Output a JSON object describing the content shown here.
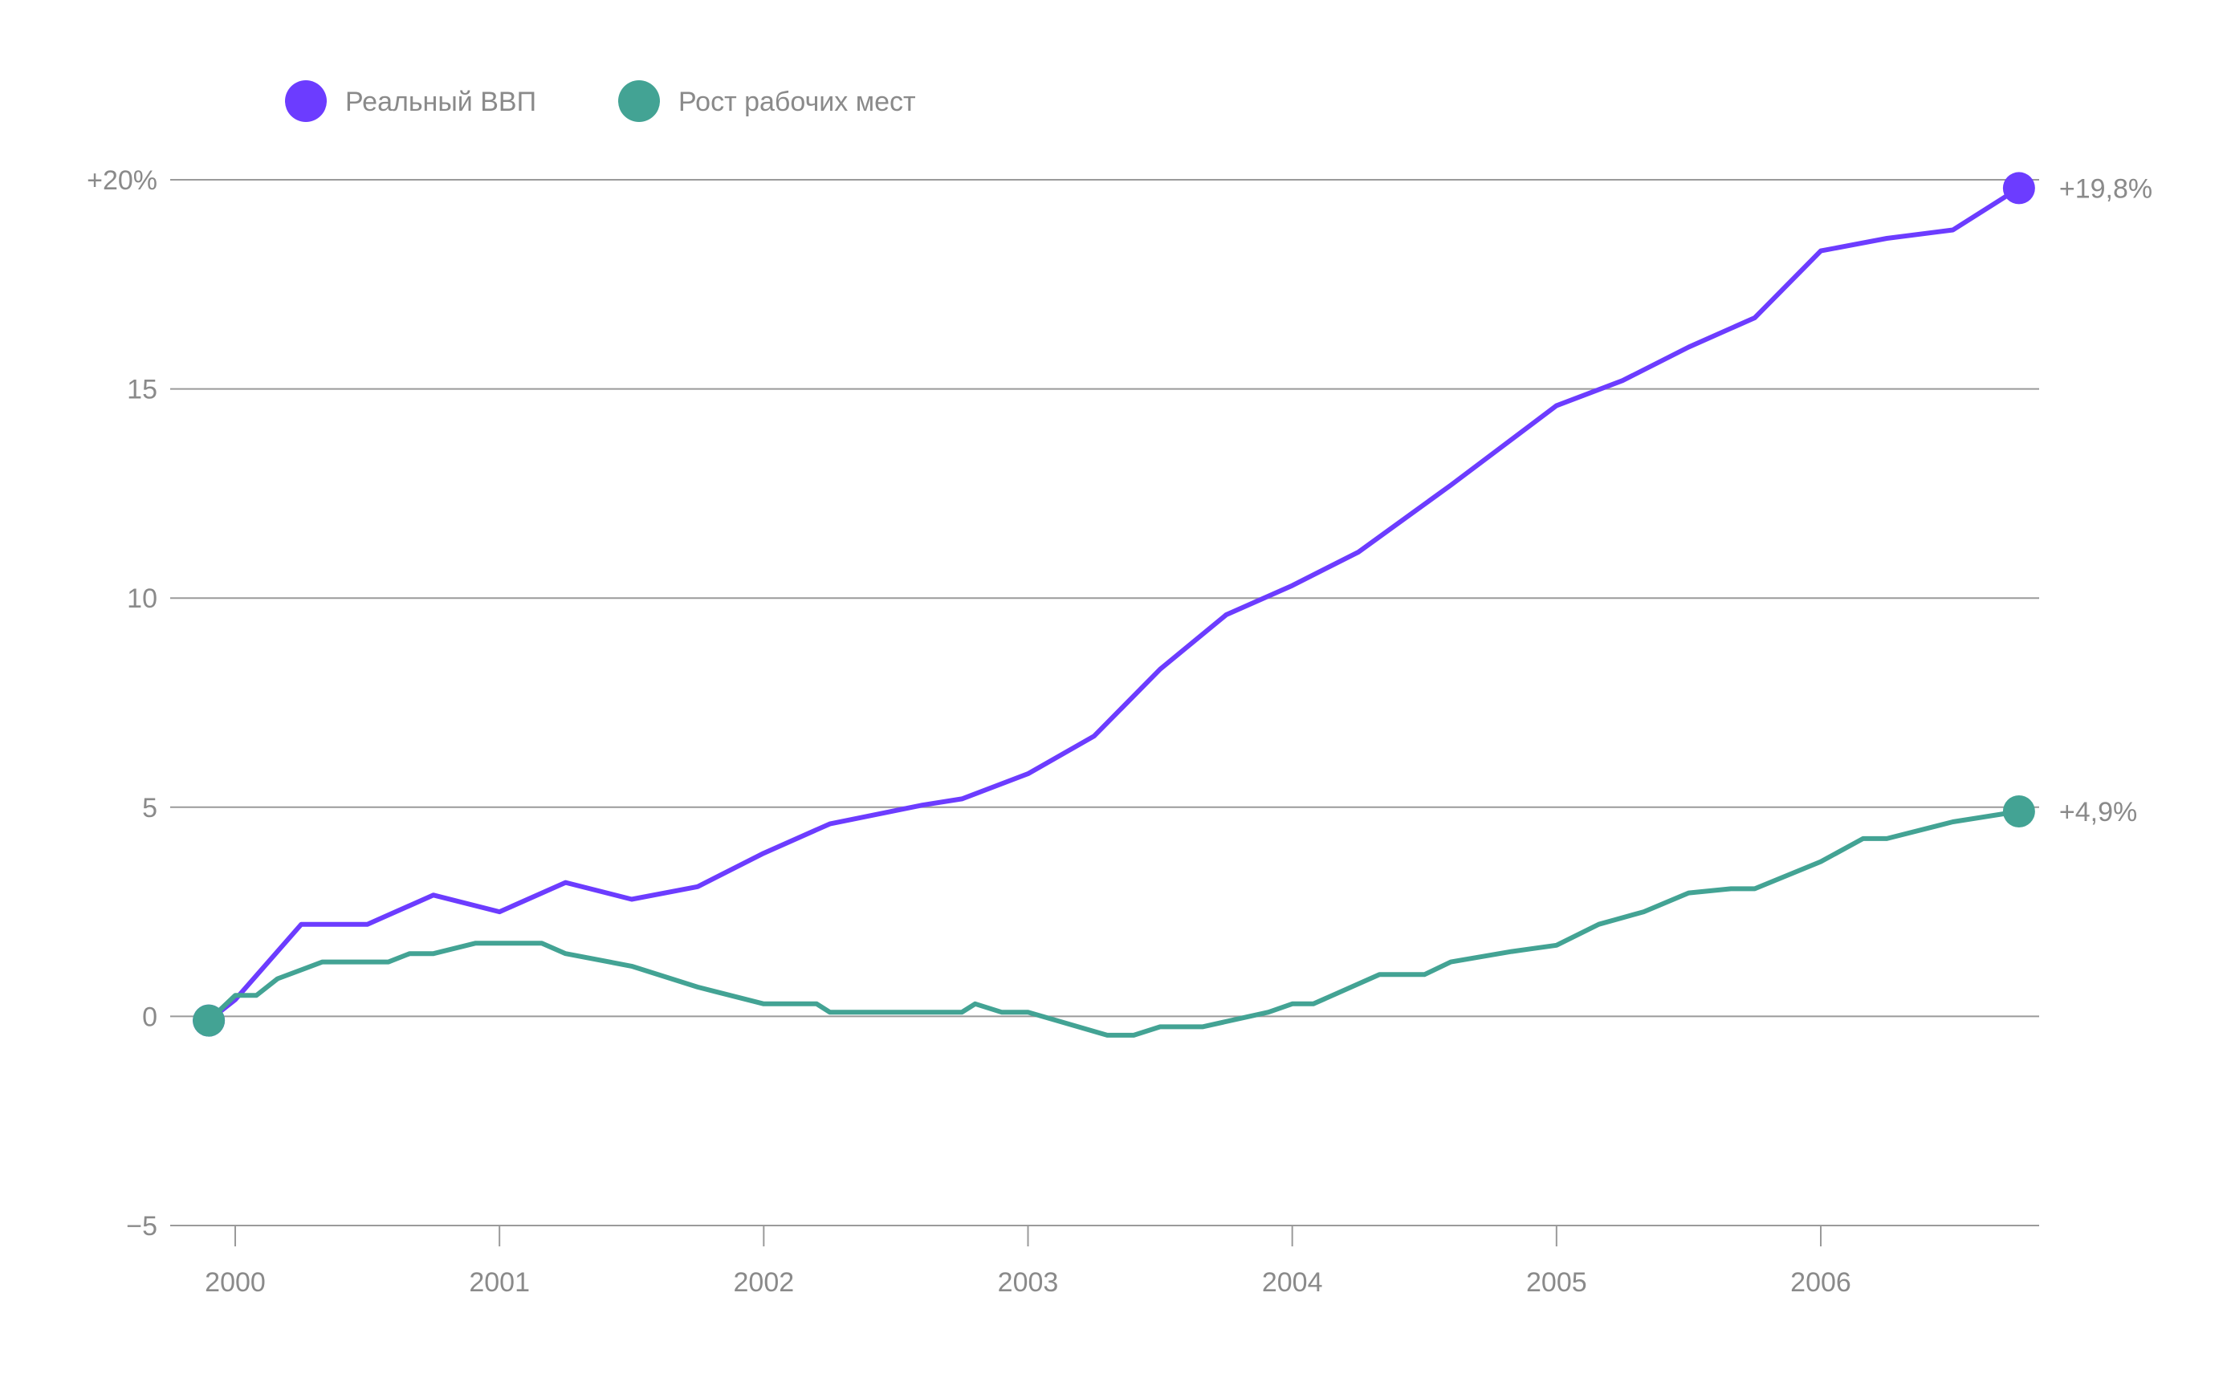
{
  "chart_data": {
    "type": "line",
    "title": "",
    "xlabel": "",
    "ylabel": "",
    "xlim": [
      1999.9,
      2006.95
    ],
    "ylim": [
      -5,
      20
    ],
    "y_ticks": [
      {
        "value": 20,
        "label": "+20%"
      },
      {
        "value": 15,
        "label": "15"
      },
      {
        "value": 10,
        "label": "10"
      },
      {
        "value": 5,
        "label": "5"
      },
      {
        "value": 0,
        "label": "0"
      },
      {
        "value": -5,
        "label": "−5"
      }
    ],
    "x_ticks": [
      {
        "value": 2000,
        "label": "2000"
      },
      {
        "value": 2001,
        "label": "2001"
      },
      {
        "value": 2002,
        "label": "2002"
      },
      {
        "value": 2003,
        "label": "2003"
      },
      {
        "value": 2004,
        "label": "2004"
      },
      {
        "value": 2005,
        "label": "2005"
      },
      {
        "value": 2006,
        "label": "2006"
      }
    ],
    "grid": true,
    "legend_position": "top-left",
    "series": [
      {
        "name": "Реальный ВВП",
        "color": "#6c3cff",
        "end_label": "+19,8%",
        "points": [
          [
            1999.9,
            -0.1
          ],
          [
            2000.0,
            0.4
          ],
          [
            2000.25,
            2.2
          ],
          [
            2000.5,
            2.2
          ],
          [
            2000.75,
            2.9
          ],
          [
            2001.0,
            2.5
          ],
          [
            2001.25,
            3.2
          ],
          [
            2001.5,
            2.8
          ],
          [
            2001.75,
            3.1
          ],
          [
            2002.0,
            3.9
          ],
          [
            2002.25,
            4.6
          ],
          [
            2002.6,
            5.05
          ],
          [
            2002.75,
            5.2
          ],
          [
            2003.0,
            5.8
          ],
          [
            2003.25,
            6.7
          ],
          [
            2003.5,
            8.3
          ],
          [
            2003.75,
            9.6
          ],
          [
            2004.0,
            10.3
          ],
          [
            2004.25,
            11.1
          ],
          [
            2004.6,
            12.7
          ],
          [
            2005.0,
            14.6
          ],
          [
            2005.25,
            15.2
          ],
          [
            2005.5,
            16.0
          ],
          [
            2005.75,
            16.7
          ],
          [
            2006.0,
            18.3
          ],
          [
            2006.25,
            18.6
          ],
          [
            2006.5,
            18.8
          ],
          [
            2006.75,
            19.8
          ]
        ]
      },
      {
        "name": "Рост рабочих мест",
        "color": "#43a394",
        "end_label": "+4,9%",
        "points": [
          [
            1999.9,
            -0.1
          ],
          [
            2000.0,
            0.5
          ],
          [
            2000.08,
            0.5
          ],
          [
            2000.16,
            0.9
          ],
          [
            2000.33,
            1.3
          ],
          [
            2000.58,
            1.3
          ],
          [
            2000.66,
            1.5
          ],
          [
            2000.75,
            1.5
          ],
          [
            2000.91,
            1.75
          ],
          [
            2001.16,
            1.75
          ],
          [
            2001.25,
            1.5
          ],
          [
            2001.5,
            1.2
          ],
          [
            2001.75,
            0.7
          ],
          [
            2002.0,
            0.3
          ],
          [
            2002.2,
            0.3
          ],
          [
            2002.25,
            0.1
          ],
          [
            2002.75,
            0.1
          ],
          [
            2002.8,
            0.3
          ],
          [
            2002.9,
            0.1
          ],
          [
            2003.0,
            0.1
          ],
          [
            2003.3,
            -0.45
          ],
          [
            2003.4,
            -0.45
          ],
          [
            2003.5,
            -0.25
          ],
          [
            2003.66,
            -0.25
          ],
          [
            2003.91,
            0.1
          ],
          [
            2004.0,
            0.3
          ],
          [
            2004.08,
            0.3
          ],
          [
            2004.33,
            1.0
          ],
          [
            2004.5,
            1.0
          ],
          [
            2004.6,
            1.3
          ],
          [
            2004.83,
            1.55
          ],
          [
            2005.0,
            1.7
          ],
          [
            2005.16,
            2.2
          ],
          [
            2005.33,
            2.5
          ],
          [
            2005.5,
            2.95
          ],
          [
            2005.66,
            3.05
          ],
          [
            2005.75,
            3.05
          ],
          [
            2006.0,
            3.7
          ],
          [
            2006.16,
            4.25
          ],
          [
            2006.25,
            4.25
          ],
          [
            2006.5,
            4.65
          ],
          [
            2006.75,
            4.9
          ]
        ]
      }
    ]
  }
}
